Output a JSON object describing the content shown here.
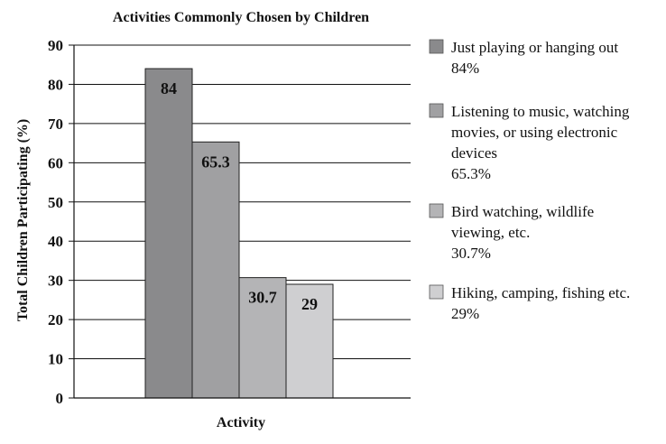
{
  "chart_data": {
    "type": "bar",
    "title": "Activities Commonly Chosen by Children",
    "xlabel": "Activity",
    "ylabel": "Total Children Participating (%)",
    "ylim": [
      0,
      90
    ],
    "yticks": [
      0,
      10,
      20,
      30,
      40,
      50,
      60,
      70,
      80,
      90
    ],
    "grid": true,
    "legend_position": "right",
    "series": [
      {
        "name": "Just playing or hanging out",
        "legend_lines": [
          "Just playing or hanging out",
          "84%"
        ],
        "value": 84,
        "label": "84",
        "color": "#8a8a8c"
      },
      {
        "name": "Listening to music, watching movies, or using electronic devices",
        "legend_lines": [
          "Listening to music, watching",
          "movies, or using electronic",
          "devices",
          "65.3%"
        ],
        "value": 65.3,
        "label": "65.3",
        "color": "#a0a0a2"
      },
      {
        "name": "Bird watching, wildlife viewing, etc.",
        "legend_lines": [
          "Bird watching, wildlife",
          "viewing, etc.",
          "30.7%"
        ],
        "value": 30.7,
        "label": "30.7",
        "color": "#b4b4b6"
      },
      {
        "name": "Hiking, camping, fishing etc.",
        "legend_lines": [
          "Hiking, camping, fishing etc.",
          "29%"
        ],
        "value": 29,
        "label": "29",
        "color": "#cfcfd1"
      }
    ]
  }
}
